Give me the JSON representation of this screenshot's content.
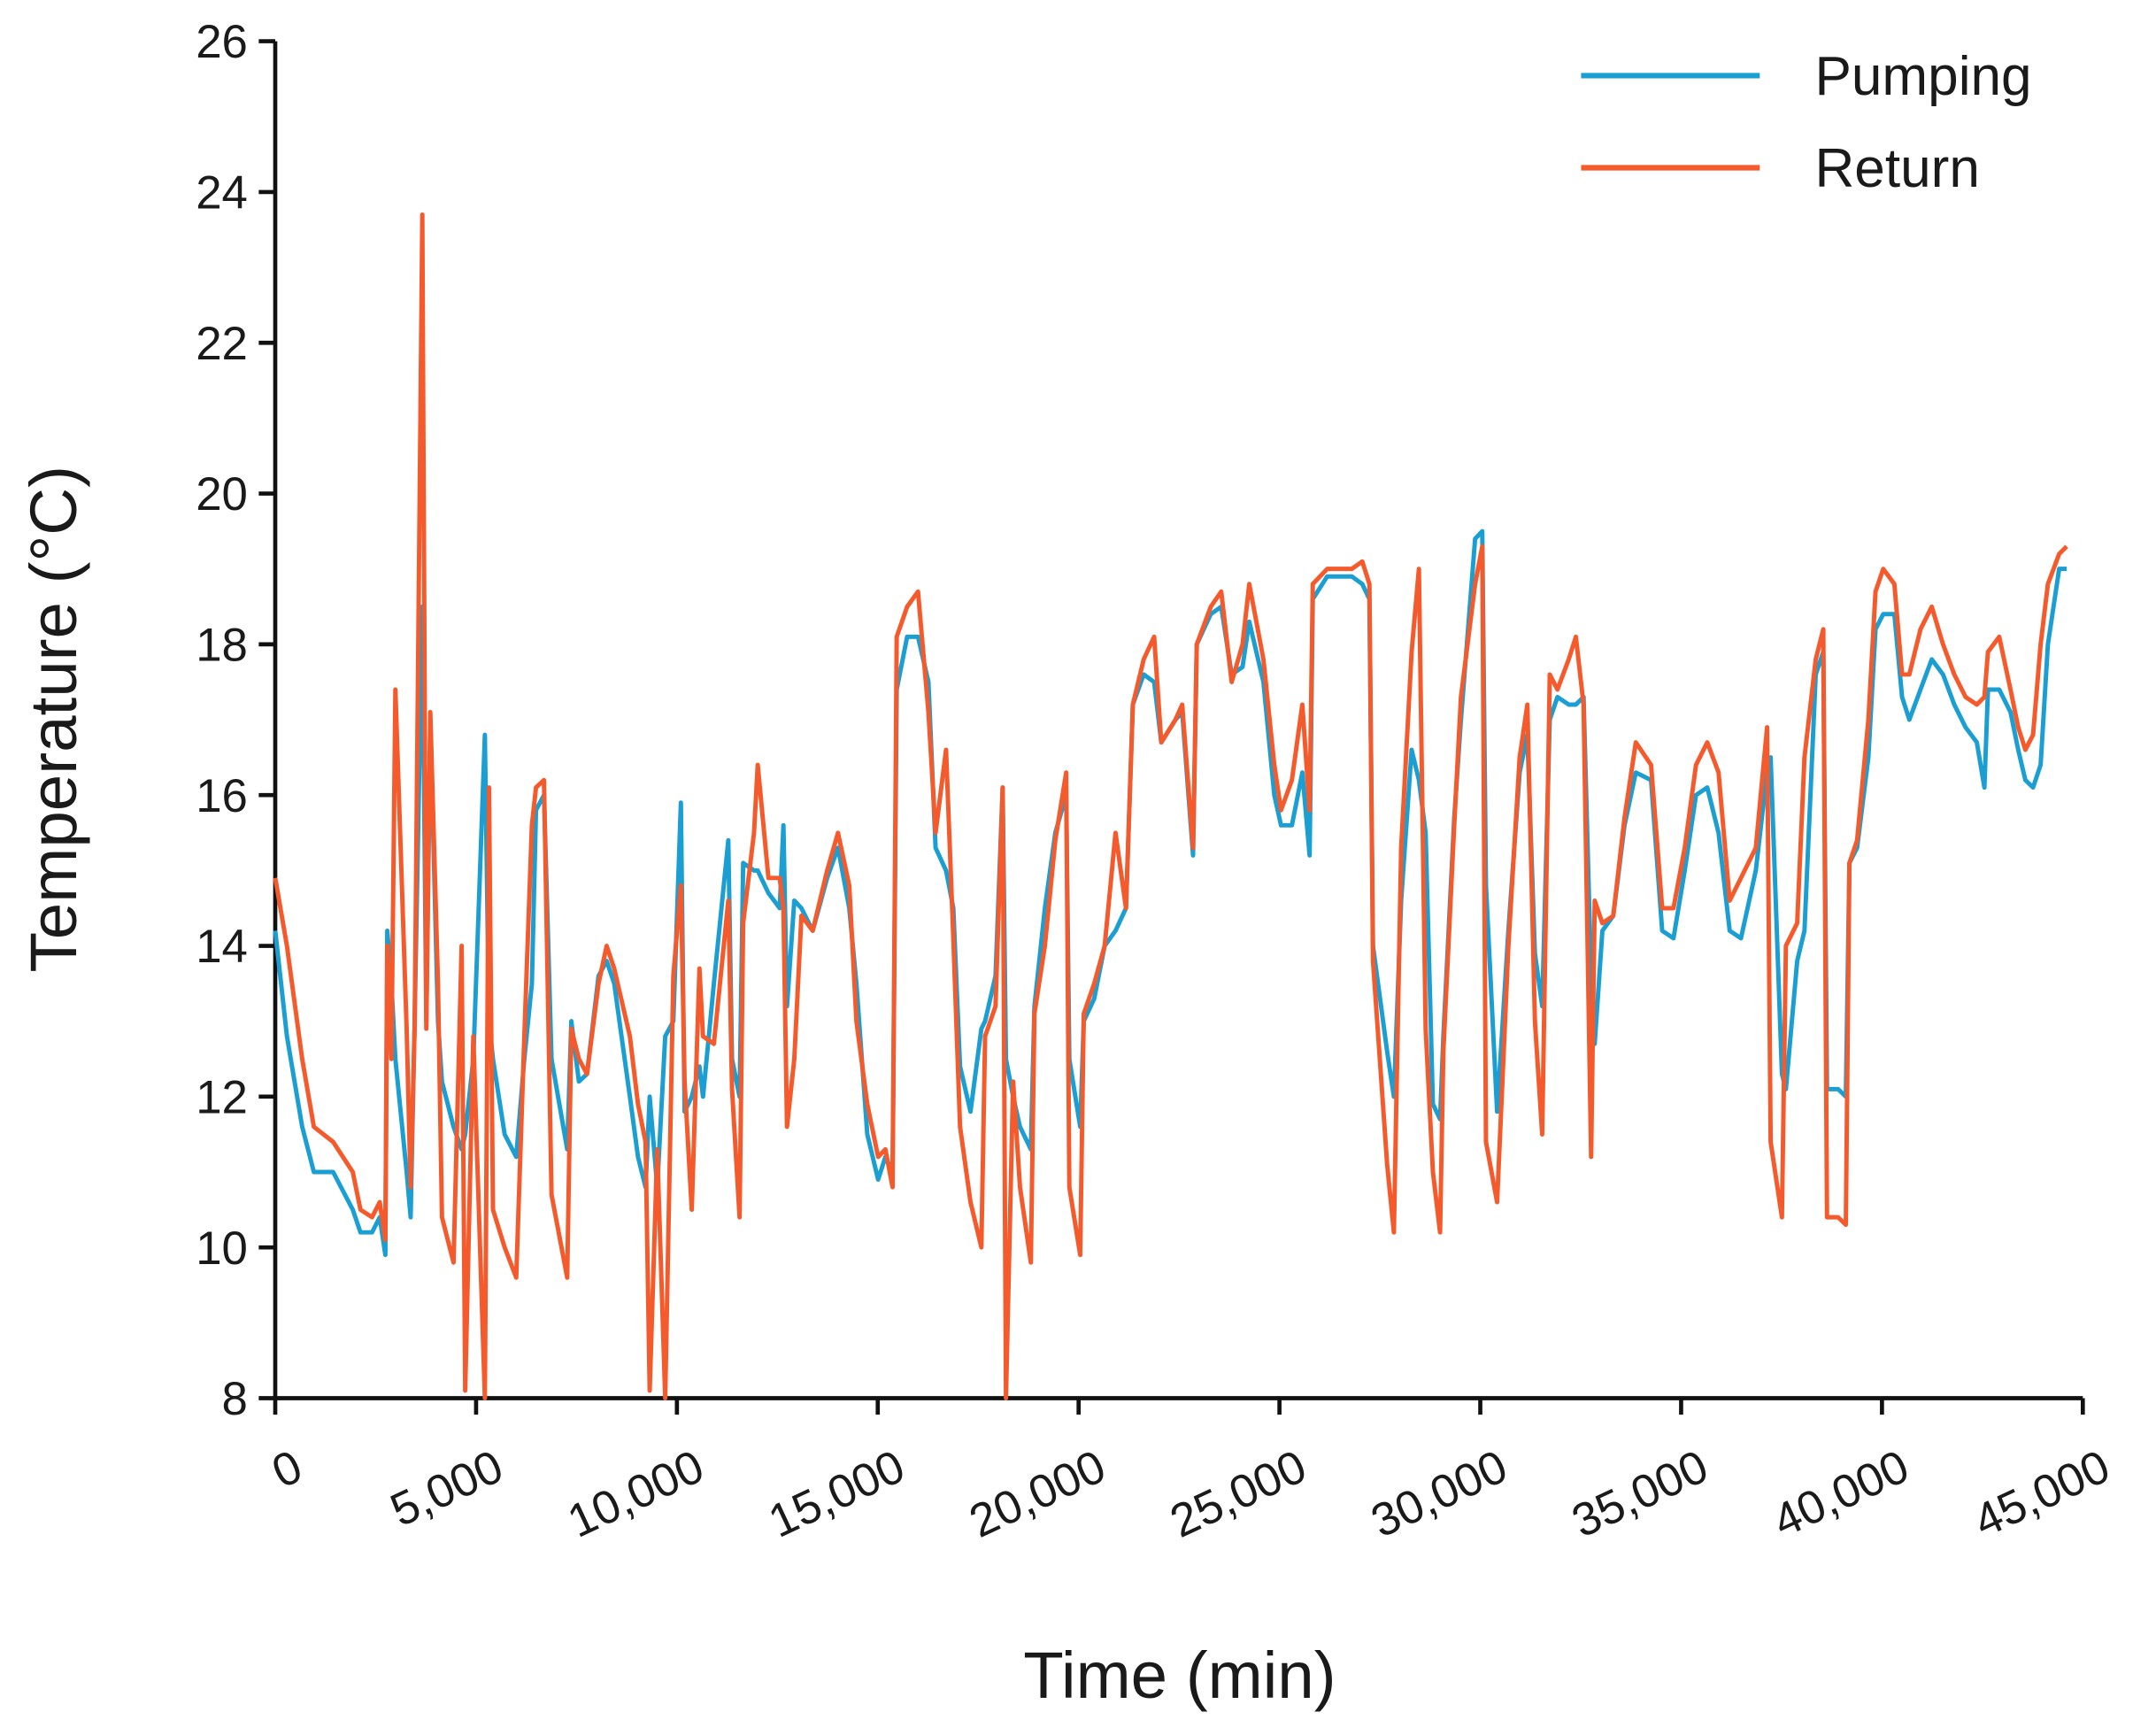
{
  "chart_data": {
    "type": "line",
    "xlabel": "Time (min)",
    "ylabel": "Temperature (°C)",
    "xlim": [
      0,
      45000
    ],
    "ylim": [
      8,
      26
    ],
    "xticks": [
      0,
      {
        "value": 5000,
        "label": "5,000"
      },
      {
        "value": 10000,
        "label": "10,000"
      },
      {
        "value": 15000,
        "label": "15,000"
      },
      {
        "value": 20000,
        "label": "20,000"
      },
      {
        "value": 25000,
        "label": "25,000"
      },
      {
        "value": 30000,
        "label": "30,000"
      },
      {
        "value": 35000,
        "label": "35,000"
      },
      {
        "value": 40000,
        "label": "40,000"
      },
      {
        "value": 45000,
        "label": "45,000"
      }
    ],
    "yticks": [
      8,
      10,
      12,
      14,
      16,
      18,
      20,
      22,
      24,
      26
    ],
    "legend": "upper right",
    "grid": false,
    "x": [
      0,
      290,
      670,
      960,
      1440,
      1930,
      2120,
      2410,
      2600,
      2740,
      2790,
      2890,
      2990,
      3270,
      3370,
      3470,
      3660,
      3760,
      3860,
      4050,
      4150,
      4440,
      4640,
      4730,
      4930,
      5220,
      5320,
      5420,
      5710,
      6000,
      6200,
      6390,
      6490,
      6690,
      6880,
      7270,
      7370,
      7560,
      7760,
      8050,
      8250,
      8440,
      8830,
      9030,
      9220,
      9320,
      9510,
      9710,
      9910,
      10100,
      10190,
      10370,
      10560,
      10650,
      10920,
      11280,
      11370,
      11560,
      11650,
      11920,
      12010,
      12280,
      12560,
      12650,
      12740,
      12920,
      13100,
      13380,
      13740,
      14010,
      14290,
      14470,
      14740,
      15010,
      15190,
      15370,
      15470,
      15730,
      16000,
      16260,
      16440,
      16700,
      16880,
      17050,
      17310,
      17580,
      17670,
      17930,
      18110,
      18190,
      18370,
      18540,
      18810,
      18900,
      19160,
      19420,
      19690,
      19770,
      20040,
      20130,
      20390,
      20650,
      20920,
      21180,
      21350,
      21620,
      21880,
      22060,
      22410,
      22580,
      22850,
      22940,
      23290,
      23550,
      23810,
      24080,
      24250,
      24600,
      24870,
      25040,
      25310,
      25570,
      25750,
      25830,
      26190,
      26540,
      26800,
      27060,
      27240,
      27330,
      27680,
      27850,
      28030,
      28290,
      28470,
      28640,
      28820,
      29000,
      29080,
      29350,
      29520,
      29870,
      30050,
      30140,
      30420,
      30700,
      30980,
      31170,
      31360,
      31540,
      31730,
      31920,
      32200,
      32380,
      32570,
      32760,
      32850,
      33040,
      33310,
      33590,
      33870,
      34250,
      34530,
      34810,
      35090,
      35370,
      35650,
      35930,
      36210,
      36490,
      36860,
      37140,
      37230,
      37510,
      37610,
      37890,
      38070,
      38350,
      38540,
      38630,
      38910,
      39100,
      39190,
      39380,
      39660,
      39840,
      40030,
      40310,
      40500,
      40680,
      40960,
      41240,
      41520,
      41800,
      42080,
      42360,
      42550,
      42640,
      42920,
      43200,
      43390,
      43570,
      43760,
      43950,
      44130,
      44410,
      44600
    ],
    "series": [
      {
        "name": "Pumping",
        "color": "#1b9fd3",
        "values": [
          14.2,
          12.8,
          11.6,
          11.0,
          11.0,
          10.5,
          10.2,
          10.2,
          10.4,
          9.9,
          14.2,
          13.5,
          12.5,
          11.0,
          10.4,
          13.0,
          18.5,
          13.0,
          17.0,
          13.0,
          12.2,
          11.6,
          11.3,
          11.5,
          12.5,
          16.8,
          13.0,
          12.5,
          11.5,
          11.2,
          12.5,
          13.5,
          15.8,
          16.0,
          12.5,
          11.3,
          13.0,
          12.2,
          12.3,
          13.6,
          13.8,
          13.5,
          12.0,
          11.2,
          10.8,
          12.0,
          10.8,
          12.8,
          13.0,
          15.9,
          11.8,
          12.0,
          12.4,
          12.0,
          13.5,
          15.4,
          12.5,
          12.0,
          15.1,
          15.0,
          15.0,
          14.7,
          14.5,
          15.6,
          13.2,
          14.6,
          14.5,
          14.2,
          14.9,
          15.3,
          14.5,
          13.5,
          11.5,
          10.9,
          11.2,
          11.0,
          17.4,
          18.1,
          18.1,
          17.5,
          15.3,
          15.0,
          14.5,
          12.4,
          11.8,
          12.9,
          13.0,
          13.6,
          16.1,
          12.5,
          12.0,
          11.6,
          11.3,
          13.2,
          14.5,
          15.5,
          16.0,
          12.5,
          11.6,
          13.0,
          13.3,
          14.0,
          14.2,
          14.5,
          17.2,
          17.6,
          17.5,
          16.7,
          17.0,
          17.1,
          15.2,
          18.0,
          18.4,
          18.5,
          17.6,
          17.7,
          18.3,
          17.5,
          16.0,
          15.6,
          15.6,
          16.3,
          15.2,
          18.6,
          18.9,
          18.9,
          18.9,
          18.8,
          18.6,
          14.0,
          12.6,
          12.0,
          14.6,
          16.6,
          16.2,
          15.5,
          11.9,
          11.7,
          12.8,
          15.7,
          17.0,
          19.4,
          19.5,
          14.8,
          11.8,
          14.2,
          16.3,
          16.8,
          13.9,
          13.2,
          17.0,
          17.3,
          17.2,
          17.2,
          17.3,
          13.6,
          12.7,
          14.2,
          14.4,
          15.6,
          16.3,
          16.2,
          14.2,
          14.1,
          15.0,
          16.0,
          16.1,
          15.5,
          14.2,
          14.1,
          15.0,
          16.3,
          16.5,
          12.3,
          12.1,
          13.8,
          14.2,
          17.6,
          17.9,
          12.1,
          12.1,
          12.0,
          15.1,
          15.3,
          16.5,
          18.2,
          18.4,
          18.4,
          17.3,
          17.0,
          17.4,
          17.8,
          17.6,
          17.2,
          16.9,
          16.7,
          16.1,
          17.4,
          17.4,
          17.1,
          16.6,
          16.2,
          16.1,
          16.4,
          18.0,
          19.0,
          19.0
        ]
      },
      {
        "name": "Return",
        "color": "#f45a2b",
        "values": [
          14.9,
          14.0,
          12.5,
          11.6,
          11.4,
          11.0,
          10.5,
          10.4,
          10.6,
          10.1,
          14.0,
          12.5,
          17.4,
          12.9,
          10.8,
          12.9,
          23.7,
          12.9,
          17.1,
          13.5,
          10.4,
          9.8,
          14.0,
          8.1,
          12.8,
          8.0,
          16.1,
          10.5,
          10.0,
          9.6,
          12.8,
          15.6,
          16.1,
          16.2,
          10.7,
          9.6,
          12.9,
          12.5,
          12.3,
          13.5,
          14.0,
          13.7,
          12.8,
          11.9,
          11.4,
          8.1,
          11.3,
          8.0,
          13.6,
          14.8,
          12.2,
          10.5,
          13.7,
          12.8,
          12.7,
          14.6,
          12.1,
          10.4,
          14.3,
          15.5,
          16.4,
          14.9,
          14.9,
          14.5,
          11.6,
          12.5,
          14.4,
          14.2,
          15.0,
          15.5,
          14.8,
          13.0,
          11.9,
          11.2,
          11.3,
          10.8,
          18.1,
          18.5,
          18.7,
          17.1,
          15.5,
          16.6,
          14.1,
          11.6,
          10.6,
          10.0,
          12.8,
          13.2,
          16.1,
          8.0,
          12.2,
          10.8,
          9.8,
          13.1,
          14.0,
          15.4,
          16.3,
          10.8,
          9.9,
          13.1,
          13.5,
          14.0,
          15.5,
          14.5,
          17.2,
          17.8,
          18.1,
          16.7,
          17.0,
          17.2,
          15.3,
          18.0,
          18.5,
          18.7,
          17.5,
          18.0,
          18.8,
          17.8,
          16.4,
          15.8,
          16.2,
          17.2,
          15.8,
          18.8,
          19.0,
          19.0,
          19.0,
          19.1,
          18.8,
          13.8,
          11.1,
          10.2,
          15.3,
          17.9,
          19.0,
          12.9,
          11.0,
          10.2,
          12.6,
          15.6,
          17.3,
          18.8,
          19.3,
          11.4,
          10.6,
          14.0,
          16.5,
          17.2,
          13.0,
          11.5,
          17.6,
          17.4,
          17.8,
          18.1,
          17.2,
          11.2,
          14.6,
          14.3,
          14.4,
          15.7,
          16.7,
          16.4,
          14.5,
          14.5,
          15.3,
          16.4,
          16.7,
          16.3,
          14.6,
          14.9,
          15.3,
          16.9,
          11.4,
          10.4,
          14.0,
          14.3,
          16.5,
          17.8,
          18.2,
          10.4,
          10.4,
          10.3,
          15.1,
          15.4,
          17.0,
          18.7,
          19.0,
          18.8,
          17.6,
          17.6,
          18.2,
          18.5,
          18.0,
          17.6,
          17.3,
          17.2,
          17.3,
          17.9,
          18.1,
          17.4,
          16.9,
          16.6,
          16.8,
          18.0,
          18.8,
          19.2,
          19.3
        ]
      }
    ]
  }
}
